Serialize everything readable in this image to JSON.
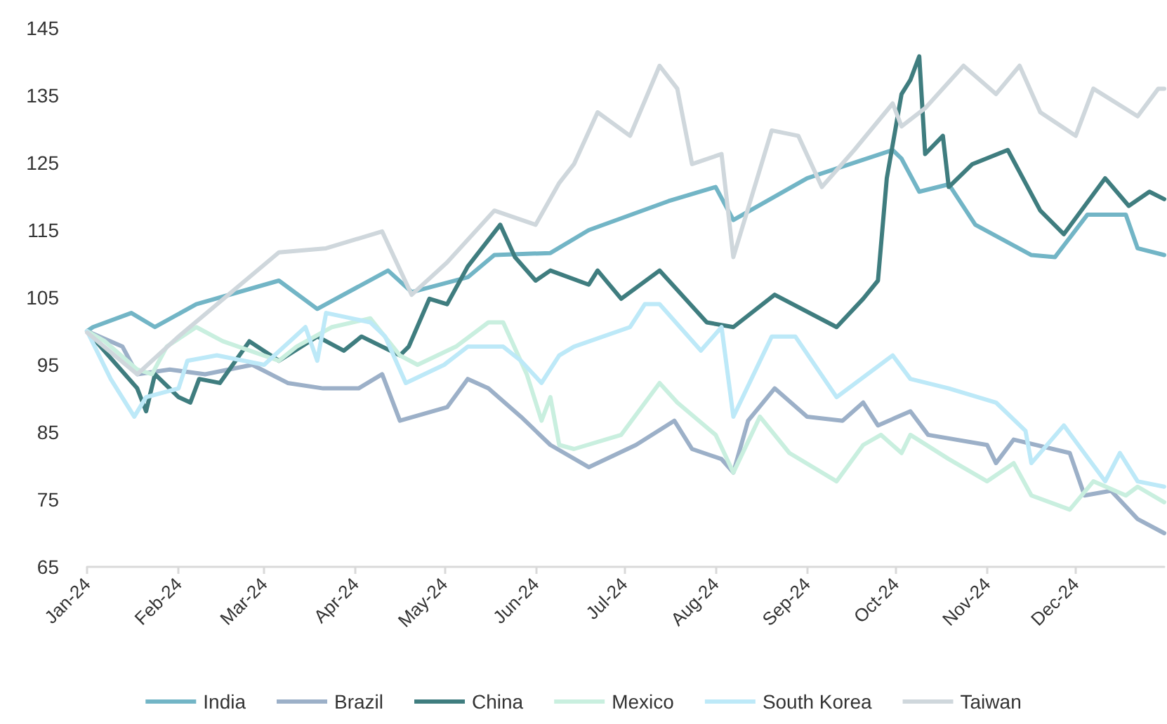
{
  "chart_data": {
    "type": "line",
    "line_style": "solid",
    "marker": "none",
    "grid": false,
    "legend": "bottom",
    "xlim": [
      "2024-01-01",
      "2024-12-31"
    ],
    "xticks": [
      {
        "value": "2024-01-01",
        "label": "Jan-24"
      },
      {
        "value": "2024-02-01",
        "label": "Feb-24"
      },
      {
        "value": "2024-03-01",
        "label": "Mar-24"
      },
      {
        "value": "2024-04-01",
        "label": "Apr-24"
      },
      {
        "value": "2024-05-01",
        "label": "May-24"
      },
      {
        "value": "2024-06-01",
        "label": "Jun-24"
      },
      {
        "value": "2024-07-01",
        "label": "Jul-24"
      },
      {
        "value": "2024-08-01",
        "label": "Aug-24"
      },
      {
        "value": "2024-09-01",
        "label": "Sep-24"
      },
      {
        "value": "2024-10-01",
        "label": "Oct-24"
      },
      {
        "value": "2024-11-01",
        "label": "Nov-24"
      },
      {
        "value": "2024-12-01",
        "label": "Dec-24"
      }
    ],
    "ylim": [
      65,
      145
    ],
    "yticks": [
      65,
      75,
      85,
      95,
      105,
      115,
      125,
      135,
      145
    ],
    "series": [
      {
        "name": "India",
        "color": "#72b5c6",
        "x": [
          "2024-01-01",
          "2024-01-03",
          "2024-01-16",
          "2024-01-24",
          "2024-02-07",
          "2024-03-06",
          "2024-03-19",
          "2024-04-12",
          "2024-04-20",
          "2024-05-09",
          "2024-05-18",
          "2024-06-06",
          "2024-06-19",
          "2024-07-16",
          "2024-08-01",
          "2024-08-07",
          "2024-09-01",
          "2024-09-30",
          "2024-10-03",
          "2024-10-09",
          "2024-10-19",
          "2024-10-28",
          "2024-11-16",
          "2024-11-24",
          "2024-12-05",
          "2024-12-18",
          "2024-12-22",
          "2024-12-31"
        ],
        "values": [
          100,
          100.6,
          102.7,
          100.6,
          104,
          107.5,
          103.3,
          109,
          105.8,
          108,
          111.3,
          111.6,
          115,
          119.3,
          121.4,
          116.5,
          122.7,
          126.9,
          125.6,
          120.7,
          121.8,
          115.8,
          111.3,
          111,
          117.3,
          117.3,
          112.3,
          111.3
        ]
      },
      {
        "name": "Brazil",
        "color": "#9cb0c8",
        "x": [
          "2024-01-01",
          "2024-01-13",
          "2024-01-18",
          "2024-01-29",
          "2024-02-10",
          "2024-02-26",
          "2024-03-09",
          "2024-03-21",
          "2024-04-02",
          "2024-04-10",
          "2024-04-16",
          "2024-05-02",
          "2024-05-09",
          "2024-05-16",
          "2024-05-27",
          "2024-06-06",
          "2024-06-19",
          "2024-07-05",
          "2024-07-18",
          "2024-07-24",
          "2024-08-03",
          "2024-08-07",
          "2024-08-12",
          "2024-08-21",
          "2024-09-01",
          "2024-09-13",
          "2024-09-20",
          "2024-09-25",
          "2024-10-06",
          "2024-10-12",
          "2024-11-01",
          "2024-11-04",
          "2024-11-10",
          "2024-11-29",
          "2024-12-04",
          "2024-12-13",
          "2024-12-22",
          "2024-12-31"
        ],
        "values": [
          100,
          97.7,
          93.6,
          94.3,
          93.6,
          95,
          92.3,
          91.5,
          91.5,
          93.6,
          86.7,
          88.7,
          92.9,
          91.5,
          87.3,
          83.1,
          79.8,
          83.1,
          86.7,
          82.5,
          81,
          79,
          86.7,
          91.5,
          87.3,
          86.7,
          89.4,
          86,
          88.1,
          84.6,
          83.1,
          80.4,
          83.9,
          81.9,
          75.6,
          76.3,
          72.1,
          70
        ]
      },
      {
        "name": "China",
        "color": "#3f7d7f",
        "x": [
          "2024-01-01",
          "2024-01-18",
          "2024-01-21",
          "2024-01-24",
          "2024-02-01",
          "2024-02-05",
          "2024-02-08",
          "2024-02-15",
          "2024-02-25",
          "2024-03-06",
          "2024-03-19",
          "2024-03-28",
          "2024-04-03",
          "2024-04-16",
          "2024-04-19",
          "2024-04-26",
          "2024-05-02",
          "2024-05-09",
          "2024-05-20",
          "2024-05-25",
          "2024-06-01",
          "2024-06-06",
          "2024-06-19",
          "2024-06-22",
          "2024-06-30",
          "2024-07-13",
          "2024-07-29",
          "2024-08-07",
          "2024-08-21",
          "2024-09-11",
          "2024-09-20",
          "2024-09-25",
          "2024-09-28",
          "2024-10-03",
          "2024-10-06",
          "2024-10-09",
          "2024-10-11",
          "2024-10-17",
          "2024-10-19",
          "2024-10-27",
          "2024-11-08",
          "2024-11-19",
          "2024-11-27",
          "2024-12-11",
          "2024-12-19",
          "2024-12-26",
          "2024-12-31"
        ],
        "values": [
          100,
          91.5,
          88.1,
          93.6,
          90.2,
          89.4,
          92.9,
          92.3,
          98.5,
          95.6,
          99.2,
          97.1,
          99.2,
          96.4,
          97.7,
          104.8,
          104,
          109.6,
          115.8,
          111,
          107.5,
          109,
          106.9,
          109,
          104.8,
          109,
          101.3,
          100.6,
          105.4,
          100.6,
          104.8,
          107.5,
          122.7,
          135.2,
          137.3,
          140.8,
          126.3,
          129,
          121.4,
          124.8,
          126.9,
          117.9,
          114.4,
          122.7,
          118.6,
          120.7,
          119.6
        ]
      },
      {
        "name": "Mexico",
        "color": "#c9efdf",
        "x": [
          "2024-01-01",
          "2024-01-07",
          "2024-01-18",
          "2024-01-23",
          "2024-01-28",
          "2024-02-07",
          "2024-02-16",
          "2024-03-06",
          "2024-03-12",
          "2024-03-24",
          "2024-04-06",
          "2024-04-16",
          "2024-04-22",
          "2024-05-05",
          "2024-05-16",
          "2024-05-21",
          "2024-05-29",
          "2024-06-03",
          "2024-06-06",
          "2024-06-09",
          "2024-06-14",
          "2024-06-30",
          "2024-07-13",
          "2024-07-19",
          "2024-08-01",
          "2024-08-07",
          "2024-08-16",
          "2024-08-26",
          "2024-09-11",
          "2024-09-20",
          "2024-09-26",
          "2024-10-03",
          "2024-10-06",
          "2024-10-19",
          "2024-11-01",
          "2024-11-10",
          "2024-11-16",
          "2024-11-29",
          "2024-12-07",
          "2024-12-18",
          "2024-12-22",
          "2024-12-31"
        ],
        "values": [
          100,
          98.5,
          94.3,
          93.6,
          97.7,
          100.6,
          98.5,
          95.6,
          97.7,
          100.6,
          101.9,
          96.4,
          95,
          97.7,
          101.3,
          101.3,
          93.6,
          86.7,
          90.2,
          83.1,
          82.5,
          84.6,
          92.3,
          89.4,
          84.6,
          79,
          87.3,
          81.9,
          77.7,
          83.1,
          84.6,
          81.9,
          84.6,
          81,
          77.7,
          80.4,
          75.6,
          73.5,
          77.7,
          75.6,
          76.9,
          74.6
        ]
      },
      {
        "name": "South Korea",
        "color": "#bde9f8",
        "x": [
          "2024-01-01",
          "2024-01-09",
          "2024-01-17",
          "2024-01-21",
          "2024-02-01",
          "2024-02-04",
          "2024-02-14",
          "2024-03-01",
          "2024-03-15",
          "2024-03-19",
          "2024-03-22",
          "2024-04-06",
          "2024-04-11",
          "2024-04-18",
          "2024-05-01",
          "2024-05-09",
          "2024-05-21",
          "2024-05-27",
          "2024-06-03",
          "2024-06-09",
          "2024-06-14",
          "2024-07-03",
          "2024-07-08",
          "2024-07-13",
          "2024-07-27",
          "2024-08-03",
          "2024-08-07",
          "2024-08-20",
          "2024-08-28",
          "2024-09-11",
          "2024-09-30",
          "2024-10-06",
          "2024-10-19",
          "2024-11-04",
          "2024-11-14",
          "2024-11-16",
          "2024-11-27",
          "2024-12-11",
          "2024-12-16",
          "2024-12-22",
          "2024-12-31"
        ],
        "values": [
          100,
          92.9,
          87.3,
          90.2,
          91.5,
          95.6,
          96.4,
          95,
          100.6,
          95.6,
          102.7,
          101.3,
          99.2,
          92.3,
          95,
          97.7,
          97.7,
          95.6,
          92.3,
          96.4,
          97.7,
          100.6,
          104,
          104,
          97.1,
          100.6,
          87.3,
          99.2,
          99.2,
          90.2,
          96.4,
          92.9,
          91.5,
          89.4,
          85.2,
          80.4,
          86,
          77.7,
          81.9,
          77.7,
          76.9
        ]
      },
      {
        "name": "Taiwan",
        "color": "#cfd7dc",
        "x": [
          "2024-01-01",
          "2024-01-18",
          "2024-02-01",
          "2024-03-06",
          "2024-03-22",
          "2024-04-10",
          "2024-04-20",
          "2024-05-02",
          "2024-05-18",
          "2024-06-01",
          "2024-06-09",
          "2024-06-14",
          "2024-06-22",
          "2024-07-03",
          "2024-07-13",
          "2024-07-19",
          "2024-07-24",
          "2024-08-03",
          "2024-08-07",
          "2024-08-20",
          "2024-08-29",
          "2024-09-06",
          "2024-09-17",
          "2024-09-30",
          "2024-10-03",
          "2024-10-11",
          "2024-10-24",
          "2024-11-04",
          "2024-11-12",
          "2024-11-19",
          "2024-12-01",
          "2024-12-07",
          "2024-12-22",
          "2024-12-29",
          "2024-12-31"
        ],
        "values": [
          99.8,
          93.6,
          99.2,
          111.7,
          112.3,
          114.8,
          105.4,
          110.2,
          117.9,
          115.8,
          122,
          124.8,
          132.5,
          129,
          139.4,
          136,
          124.8,
          126.3,
          111,
          129.8,
          129,
          121.4,
          126.9,
          133.8,
          130.4,
          133.1,
          139.4,
          135.2,
          139.4,
          132.5,
          129,
          136,
          131.9,
          136,
          136
        ]
      }
    ]
  }
}
